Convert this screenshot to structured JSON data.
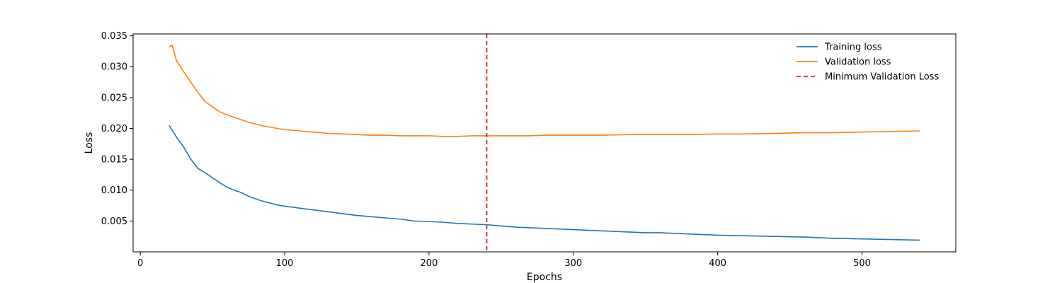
{
  "chart_data": {
    "type": "line",
    "title": "",
    "xlabel": "Epochs",
    "ylabel": "Loss",
    "xlim": [
      -5,
      565
    ],
    "ylim": [
      0.0,
      0.0353
    ],
    "xticks": [
      0,
      100,
      200,
      300,
      400,
      500
    ],
    "yticks": [
      0.005,
      0.01,
      0.015,
      0.02,
      0.025,
      0.03,
      0.035
    ],
    "ytick_labels": [
      "0.005",
      "0.010",
      "0.015",
      "0.020",
      "0.025",
      "0.030",
      "0.035"
    ],
    "grid": false,
    "legend_position": "top-right",
    "series": [
      {
        "name": "Training loss",
        "color": "#1f77b4",
        "x": [
          20,
          25,
          30,
          35,
          40,
          45,
          50,
          55,
          60,
          65,
          70,
          75,
          80,
          85,
          90,
          95,
          100,
          110,
          120,
          130,
          140,
          150,
          160,
          170,
          180,
          190,
          200,
          210,
          220,
          230,
          240,
          250,
          260,
          270,
          280,
          290,
          300,
          310,
          320,
          330,
          340,
          350,
          360,
          370,
          380,
          390,
          400,
          420,
          440,
          460,
          480,
          500,
          520,
          540
        ],
        "y": [
          0.0205,
          0.0186,
          0.017,
          0.015,
          0.0135,
          0.0128,
          0.012,
          0.0112,
          0.0105,
          0.01,
          0.0096,
          0.009,
          0.0086,
          0.0082,
          0.0079,
          0.0076,
          0.0074,
          0.0071,
          0.0068,
          0.0065,
          0.0062,
          0.0059,
          0.0057,
          0.0055,
          0.0053,
          0.005,
          0.0049,
          0.0048,
          0.0046,
          0.0045,
          0.0044,
          0.0042,
          0.004,
          0.0039,
          0.0038,
          0.0037,
          0.0036,
          0.0035,
          0.0034,
          0.0033,
          0.0032,
          0.0031,
          0.0031,
          0.003,
          0.0029,
          0.0028,
          0.0027,
          0.0026,
          0.0025,
          0.0024,
          0.0022,
          0.0021,
          0.002,
          0.0019
        ]
      },
      {
        "name": "Validation loss",
        "color": "#ff7f0e",
        "x": [
          20,
          22,
          25,
          30,
          35,
          40,
          45,
          50,
          55,
          60,
          65,
          70,
          75,
          80,
          85,
          90,
          95,
          100,
          110,
          120,
          130,
          140,
          150,
          160,
          170,
          180,
          190,
          200,
          210,
          220,
          230,
          240,
          250,
          260,
          270,
          280,
          290,
          300,
          320,
          340,
          360,
          380,
          400,
          420,
          440,
          460,
          480,
          500,
          520,
          540
        ],
        "y": [
          0.0332,
          0.0335,
          0.031,
          0.0292,
          0.0275,
          0.0258,
          0.0243,
          0.0235,
          0.0227,
          0.0222,
          0.0218,
          0.0214,
          0.021,
          0.0207,
          0.0204,
          0.0202,
          0.02,
          0.0198,
          0.0196,
          0.0194,
          0.0192,
          0.0191,
          0.019,
          0.0189,
          0.0189,
          0.0188,
          0.0188,
          0.0188,
          0.0187,
          0.0187,
          0.0188,
          0.0188,
          0.0188,
          0.0188,
          0.0188,
          0.0189,
          0.0189,
          0.0189,
          0.0189,
          0.019,
          0.019,
          0.019,
          0.0191,
          0.0191,
          0.0192,
          0.0193,
          0.0193,
          0.0194,
          0.0195,
          0.0196
        ]
      }
    ],
    "annotations": [
      {
        "name": "Minimum Validation Loss",
        "type": "vline",
        "x": 240,
        "color": "#d62728",
        "style": "dashed"
      }
    ]
  }
}
